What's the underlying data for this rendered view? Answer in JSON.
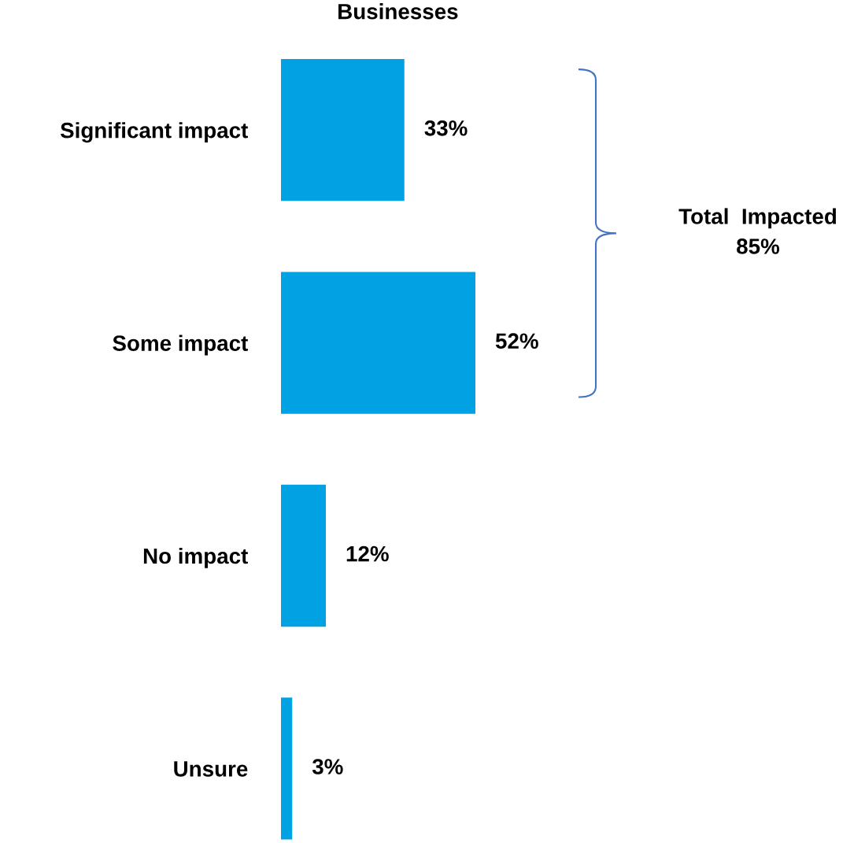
{
  "chart_data": {
    "type": "bar",
    "orientation": "horizontal",
    "title": "Businesses",
    "categories": [
      "Significant impact",
      "Some impact",
      "No impact",
      "Unsure"
    ],
    "values": [
      33,
      52,
      12,
      3
    ],
    "color": "#00a2e3",
    "value_labels": [
      "33%",
      "52%",
      "12%",
      "3%"
    ],
    "tick_labels": "y",
    "grid": false,
    "legend": false,
    "annotations": [
      "Total  Impacted\n85%"
    ]
  }
}
